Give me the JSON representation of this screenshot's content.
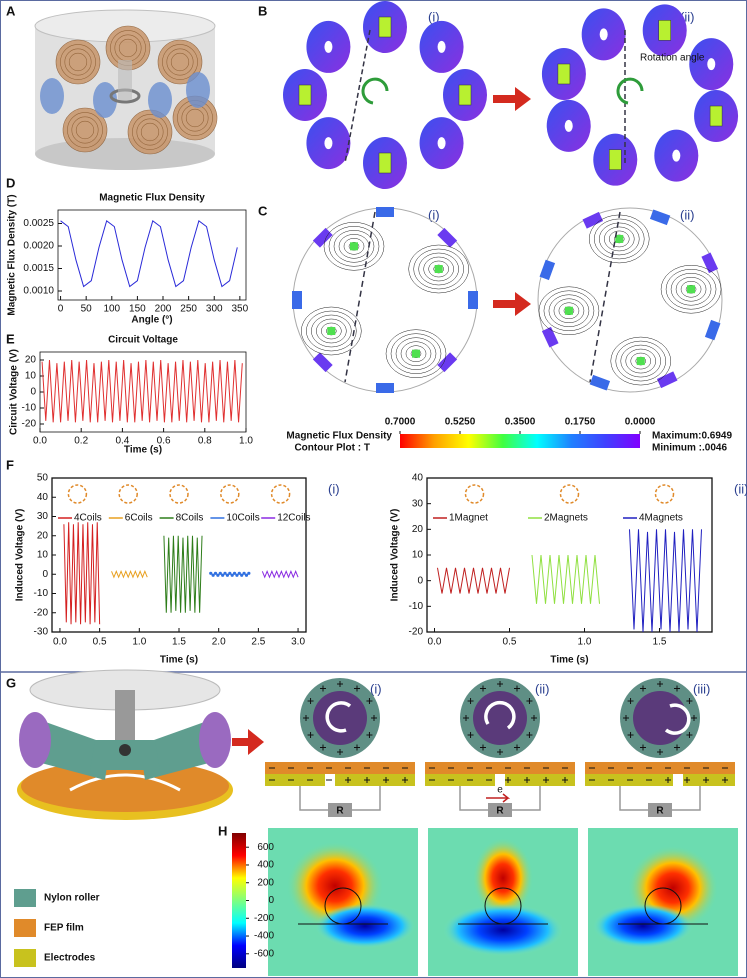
{
  "panel_labels": [
    "A",
    "B",
    "C",
    "D",
    "E",
    "F",
    "G",
    "H"
  ],
  "sub_labels": [
    "(i)",
    "(ii)",
    "(iii)"
  ],
  "annotations": {
    "rotation_angle": "Rotation angle",
    "resistor": "R",
    "electron": "e"
  },
  "legend_g": [
    {
      "name": "Nylon roller",
      "color": "#5f9e8f"
    },
    {
      "name": "FEP film",
      "color": "#e08a2a"
    },
    {
      "name": "Electrodes",
      "color": "#c8c21e"
    }
  ],
  "chart_data": [
    {
      "type": "line",
      "title": "Magnetic Flux Density",
      "x_label": "Angle  (°)",
      "y_label": "Magnetic Flux Density  (T)",
      "x": [
        0,
        15,
        30,
        45,
        60,
        75,
        90,
        105,
        120,
        135,
        150,
        165,
        180,
        195,
        210,
        225,
        240,
        255,
        270,
        285,
        300,
        315,
        330,
        345
      ],
      "values": [
        0.00256,
        0.00243,
        0.00169,
        0.0011,
        0.00123,
        0.00197,
        0.00256,
        0.00243,
        0.00169,
        0.0011,
        0.00123,
        0.00197,
        0.00256,
        0.00243,
        0.00169,
        0.0011,
        0.00123,
        0.00197,
        0.00256,
        0.00243,
        0.00169,
        0.0011,
        0.00123,
        0.00197
      ],
      "color": "#2a2ad8",
      "xlim": [
        -5,
        362
      ],
      "ylim": [
        0.0008,
        0.0028
      ],
      "xticks": [
        0,
        50,
        100,
        150,
        200,
        250,
        300,
        350
      ],
      "yticks": [
        {
          "value": 0.001,
          "label": "0.0010"
        },
        {
          "value": 0.0015,
          "label": "0.0015"
        },
        {
          "value": 0.002,
          "label": "0.0020"
        },
        {
          "value": 0.0025,
          "label": "0.0025"
        }
      ]
    },
    {
      "type": "line",
      "title": "Circuit Voltage",
      "x_label": "Time (s)",
      "y_label": "Circuit Voltage  (V)",
      "x": [
        0.01,
        0.028,
        0.046,
        0.064,
        0.082,
        0.1,
        0.118,
        0.136,
        0.154,
        0.172,
        0.19,
        0.208,
        0.226,
        0.244,
        0.262,
        0.28,
        0.298,
        0.316,
        0.334,
        0.352,
        0.37,
        0.388,
        0.406,
        0.424,
        0.442,
        0.46,
        0.478,
        0.496,
        0.514,
        0.532,
        0.55,
        0.568,
        0.586,
        0.604,
        0.622,
        0.64,
        0.658,
        0.676,
        0.694,
        0.712,
        0.73,
        0.748,
        0.766,
        0.784,
        0.802,
        0.82,
        0.838,
        0.856,
        0.874,
        0.892,
        0.91,
        0.928,
        0.946,
        0.964,
        0.982
      ],
      "values": [
        19,
        -18,
        20,
        -19,
        18,
        -19,
        19,
        -18,
        20,
        -19,
        19,
        -18,
        20,
        -19,
        18,
        -19,
        19,
        -18,
        20,
        -19,
        19,
        -18,
        20,
        -19,
        18,
        -19,
        19,
        -18,
        20,
        -19,
        19,
        -18,
        20,
        -19,
        18,
        -19,
        19,
        -18,
        20,
        -19,
        19,
        -18,
        20,
        -19,
        18,
        -19,
        19,
        -18,
        20,
        -19,
        19,
        -18,
        20,
        -19,
        18
      ],
      "color": "#e03030",
      "xlim": [
        0,
        1
      ],
      "ylim": [
        -25,
        25
      ],
      "xticks": [
        {
          "value": 0,
          "label": "0.0"
        },
        0.2,
        0.4,
        0.6,
        0.8,
        {
          "value": 1,
          "label": "1.0"
        }
      ],
      "yticks": [
        -20,
        -10,
        0,
        10,
        20
      ]
    },
    {
      "type": "line",
      "label": "(i)",
      "x_label": "Time (s)",
      "y_label": "Induced Voltage (V)",
      "legend": "top",
      "xlim": [
        -0.1,
        3.1
      ],
      "ylim": [
        -30,
        50
      ],
      "xticks": [
        {
          "value": 0,
          "label": "0.0"
        },
        0.5,
        {
          "value": 1,
          "label": "1.0"
        },
        1.5,
        {
          "value": 2,
          "label": "2.0"
        },
        2.5,
        {
          "value": 3,
          "label": "3.0"
        }
      ],
      "yticks": [
        -30,
        -20,
        -10,
        0,
        10,
        20,
        30,
        40,
        50
      ],
      "series": [
        {
          "name": "4Coils",
          "color": "#d42020",
          "x": [
            0.05,
            0.08,
            0.11,
            0.14,
            0.17,
            0.2,
            0.23,
            0.26,
            0.29,
            0.32,
            0.35,
            0.38,
            0.41,
            0.44,
            0.47,
            0.5
          ],
          "values": [
            26,
            -25,
            27,
            -26,
            26,
            -25,
            27,
            -26,
            26,
            -25,
            27,
            -26,
            26,
            -25,
            27,
            -26
          ]
        },
        {
          "name": "6Coils",
          "color": "#e8a020",
          "x": [
            0.65,
            0.68,
            0.71,
            0.74,
            0.77,
            0.8,
            0.83,
            0.86,
            0.89,
            0.92,
            0.95,
            0.98,
            1.01,
            1.04,
            1.07,
            1.1
          ],
          "values": [
            1.5,
            -1.5,
            1.5,
            -1.5,
            1.5,
            -1.5,
            1.5,
            -1.5,
            1.5,
            -1.5,
            1.5,
            -1.5,
            1.5,
            -1.5,
            1.5,
            -1.5
          ]
        },
        {
          "name": "8Coils",
          "color": "#2e7d1a",
          "x": [
            1.31,
            1.34,
            1.37,
            1.4,
            1.43,
            1.46,
            1.49,
            1.52,
            1.55,
            1.58,
            1.61,
            1.64,
            1.67,
            1.7,
            1.73,
            1.76,
            1.79
          ],
          "values": [
            20,
            -20,
            19,
            -20,
            20,
            -19,
            20,
            -20,
            19,
            -20,
            20,
            -19,
            20,
            -20,
            19,
            -20,
            20
          ]
        },
        {
          "name": "10Coils",
          "color": "#3070e0",
          "marker": "circle",
          "x": [
            1.9,
            1.93,
            1.96,
            1.99,
            2.02,
            2.05,
            2.08,
            2.11,
            2.14,
            2.17,
            2.2,
            2.23,
            2.26,
            2.29,
            2.32,
            2.35,
            2.38
          ],
          "values": [
            0.5,
            -0.5,
            0.5,
            -0.5,
            0.5,
            -0.5,
            0.5,
            -0.5,
            0.5,
            -0.5,
            0.5,
            -0.5,
            0.5,
            -0.5,
            0.5,
            -0.5,
            0.5
          ]
        },
        {
          "name": "12Coils",
          "color": "#8a2be2",
          "x": [
            2.55,
            2.58,
            2.61,
            2.64,
            2.67,
            2.7,
            2.73,
            2.76,
            2.79,
            2.82,
            2.85,
            2.88,
            2.91,
            2.94,
            2.97,
            3.0
          ],
          "values": [
            1.5,
            -1.5,
            1.5,
            -1.5,
            1.5,
            -1.5,
            1.5,
            -1.5,
            1.5,
            -1.5,
            1.5,
            -1.5,
            1.5,
            -1.5,
            1.5,
            -1.5
          ]
        }
      ]
    },
    {
      "type": "line",
      "label": "(ii)",
      "x_label": "Time (s)",
      "y_label": "Induced Voltage (V)",
      "legend": "top",
      "xlim": [
        -0.05,
        1.85
      ],
      "ylim": [
        -20,
        40
      ],
      "xticks": [
        {
          "value": 0,
          "label": "0.0"
        },
        0.5,
        {
          "value": 1,
          "label": "1.0"
        },
        1.5
      ],
      "yticks": [
        -20,
        -10,
        0,
        10,
        20,
        30,
        40
      ],
      "series": [
        {
          "name": "1Magnet",
          "color": "#c02020",
          "x": [
            0.02,
            0.05,
            0.08,
            0.11,
            0.14,
            0.17,
            0.2,
            0.23,
            0.26,
            0.29,
            0.32,
            0.35,
            0.38,
            0.41,
            0.44,
            0.47,
            0.5
          ],
          "values": [
            5,
            -5,
            5,
            -5,
            5,
            -5,
            5,
            -5,
            5,
            -5,
            5,
            -5,
            5,
            -5,
            5,
            -5,
            5
          ]
        },
        {
          "name": "2Magnets",
          "color": "#90e040",
          "x": [
            0.65,
            0.68,
            0.71,
            0.74,
            0.77,
            0.8,
            0.83,
            0.86,
            0.89,
            0.92,
            0.95,
            0.98,
            1.01,
            1.04,
            1.07,
            1.1
          ],
          "values": [
            10,
            -9,
            10,
            -9,
            10,
            -9,
            10,
            -9,
            10,
            -9,
            10,
            -9,
            10,
            -9,
            10,
            -9
          ]
        },
        {
          "name": "4Magnets",
          "color": "#2020c0",
          "x": [
            1.3,
            1.33,
            1.36,
            1.39,
            1.42,
            1.45,
            1.48,
            1.51,
            1.54,
            1.57,
            1.6,
            1.63,
            1.66,
            1.69,
            1.72,
            1.75,
            1.78
          ],
          "values": [
            20,
            -19,
            20,
            -20,
            19,
            -20,
            20,
            -19,
            20,
            -20,
            19,
            -20,
            20,
            -19,
            20,
            -20,
            20
          ]
        }
      ]
    },
    {
      "type": "colorbar",
      "orientation": "horizontal",
      "title": "Magnetic Flux Density",
      "subtitle": "Contour Plot : T",
      "max_label": "Maximum:0.6949",
      "min_label": "Minimum :.0046",
      "xlim": [
        0.7,
        0
      ],
      "xticks": [
        {
          "value": 0.7,
          "label": "0.7000"
        },
        {
          "value": 0.525,
          "label": "0.5250"
        },
        {
          "value": 0.35,
          "label": "0.3500"
        },
        {
          "value": 0.175,
          "label": "0.1750"
        },
        {
          "value": 0,
          "label": "0.0000"
        }
      ],
      "colors": [
        "#ff0000",
        "#ffa000",
        "#ffff00",
        "#40ff40",
        "#00ffff",
        "#2080ff",
        "#4040ff",
        "#8000ff"
      ]
    },
    {
      "type": "colorbar",
      "orientation": "vertical",
      "ylim": [
        -760,
        760
      ],
      "yticks": [
        600,
        400,
        200,
        0,
        -200,
        -400,
        -600
      ],
      "colors": [
        "#00007f",
        "#0000ff",
        "#00ffff",
        "#7fff7f",
        "#ffff00",
        "#ff0000",
        "#7f0000"
      ]
    }
  ]
}
